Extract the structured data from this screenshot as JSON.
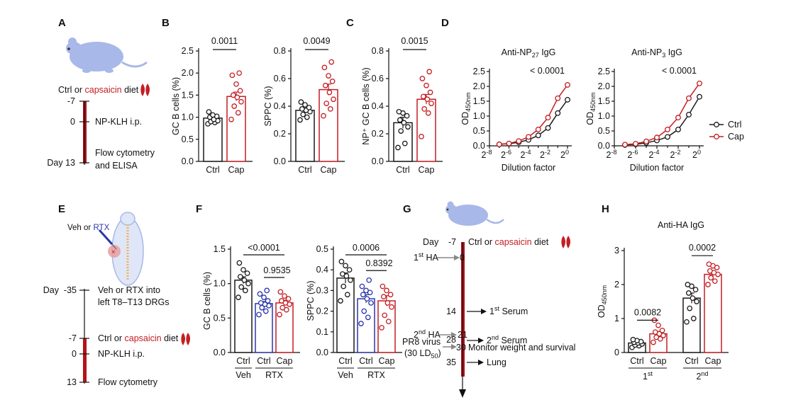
{
  "panels": {
    "A": "A",
    "B": "B",
    "C": "C",
    "D": "D",
    "E": "E",
    "F": "F",
    "G": "G",
    "H": "H"
  },
  "colors": {
    "ctrl": "#1a1a1a",
    "cap": "#c41e23",
    "rtx": "#2b36a8",
    "mouse": "#a8b8e8",
    "timeline_bar": "#b3131b"
  },
  "icons": {
    "mouse": "mouse-icon",
    "pepper": "chili-pepper-icon",
    "syringe": "syringe-icon"
  },
  "panel_a": {
    "diet_prefix": "Ctrl or ",
    "diet_highlight": "capsaicin",
    "diet_suffix": " diet",
    "days": [
      "-7",
      "0",
      "Day 13"
    ],
    "events": [
      "NP-KLH i.p.",
      "Flow cytometry",
      "and ELISA"
    ]
  },
  "panel_e": {
    "inject_prefix": "Veh or ",
    "inject_highlight": "RTX",
    "days": [
      "Day  -35",
      "-7",
      "0",
      "13"
    ],
    "events": [
      "Veh or RTX into",
      "left T8–T13 DRGs",
      "NP-KLH i.p.",
      "Flow cytometry"
    ],
    "diet_prefix": "Ctrl or ",
    "diet_highlight": "capsaicin",
    "diet_suffix": " diet"
  },
  "panel_g": {
    "events_left": [
      "1",
      "st",
      " HA",
      "2",
      "nd",
      " HA",
      "PR8 virus",
      "(30 LD",
      "50",
      ")"
    ],
    "days": [
      "Day",
      "-7",
      "0",
      "14",
      "21",
      "28",
      "30",
      "35"
    ],
    "events_right": [
      "1",
      "st",
      " Serum",
      "2",
      "nd",
      " Serum",
      "Monitor weight and survival",
      "Lung"
    ],
    "diet_prefix": "Ctrl or ",
    "diet_highlight": "capsaicin",
    "diet_suffix": " diet"
  },
  "chart_data": [
    {
      "id": "B1",
      "type": "bar",
      "categories": [
        "Ctrl",
        "Cap"
      ],
      "values": [
        0.98,
        1.47
      ],
      "errors": [
        0.05,
        0.1
      ],
      "points": [
        [
          0.85,
          0.88,
          0.9,
          0.92,
          0.95,
          1.0,
          1.02,
          1.05,
          1.12
        ],
        [
          0.95,
          1.1,
          1.25,
          1.35,
          1.45,
          1.5,
          1.6,
          1.75,
          1.95,
          2.0
        ]
      ],
      "ylabel": "GC B cells (%)",
      "ylim": [
        0,
        2.5
      ],
      "yticks": [
        "0.0",
        "0.5",
        "1.0",
        "1.5",
        "2.0",
        "2.5"
      ],
      "pvalue": "0.0011"
    },
    {
      "id": "B2",
      "type": "bar",
      "categories": [
        "Ctrl",
        "Cap"
      ],
      "values": [
        0.37,
        0.52
      ],
      "errors": [
        0.015,
        0.04
      ],
      "points": [
        [
          0.3,
          0.32,
          0.34,
          0.36,
          0.37,
          0.38,
          0.39,
          0.41,
          0.43
        ],
        [
          0.33,
          0.38,
          0.42,
          0.45,
          0.5,
          0.55,
          0.58,
          0.62,
          0.68,
          0.72
        ]
      ],
      "ylabel": "SPPC (%)",
      "ylim": [
        0,
        0.8
      ],
      "yticks": [
        "0.0",
        "0.2",
        "0.4",
        "0.6",
        "0.8"
      ],
      "pvalue": "0.0049"
    },
    {
      "id": "C",
      "type": "bar",
      "categories": [
        "Ctrl",
        "Cap"
      ],
      "values": [
        0.28,
        0.45
      ],
      "errors": [
        0.04,
        0.035
      ],
      "points": [
        [
          0.1,
          0.13,
          0.22,
          0.25,
          0.28,
          0.3,
          0.33,
          0.35,
          0.36
        ],
        [
          0.18,
          0.35,
          0.38,
          0.42,
          0.45,
          0.47,
          0.5,
          0.55,
          0.6,
          0.65
        ]
      ],
      "ylabel": "NP⁺ GC B cells (%)",
      "ylim": [
        0,
        0.8
      ],
      "yticks": [
        "0.0",
        "0.2",
        "0.4",
        "0.6",
        "0.8"
      ],
      "pvalue": "0.0015"
    },
    {
      "id": "D1",
      "type": "line",
      "title_prefix": "Anti-NP",
      "title_sub": "27",
      "title_suffix": " IgG",
      "x_exp": [
        -7,
        -6,
        -5,
        -4,
        -3,
        -2,
        -1,
        0
      ],
      "xticks_exp": [
        "-8",
        "-6",
        "-4",
        "-2",
        "0"
      ],
      "series": [
        {
          "name": "Ctrl",
          "values": [
            0.05,
            0.07,
            0.12,
            0.2,
            0.35,
            0.6,
            1.1,
            1.55
          ]
        },
        {
          "name": "Cap",
          "values": [
            0.05,
            0.08,
            0.16,
            0.3,
            0.55,
            0.95,
            1.6,
            2.05
          ]
        }
      ],
      "ylabel": "OD",
      "ylabel_sub": "450nm",
      "xlabel": "Dilution factor",
      "ylim": [
        0,
        2.5
      ],
      "yticks": [
        "0.0",
        "0.5",
        "1.0",
        "1.5",
        "2.0",
        "2.5"
      ],
      "pvalue": "< 0.0001"
    },
    {
      "id": "D2",
      "type": "line",
      "title_prefix": "Anti-NP",
      "title_sub": "3",
      "title_suffix": " IgG",
      "x_exp": [
        -7,
        -6,
        -5,
        -4,
        -3,
        -2,
        -1,
        0
      ],
      "xticks_exp": [
        "-8",
        "-6",
        "-4",
        "-2",
        "0"
      ],
      "series": [
        {
          "name": "Ctrl",
          "values": [
            0.03,
            0.05,
            0.1,
            0.18,
            0.3,
            0.55,
            1.05,
            1.65
          ]
        },
        {
          "name": "Cap",
          "values": [
            0.04,
            0.07,
            0.15,
            0.28,
            0.55,
            0.95,
            1.6,
            2.1
          ]
        }
      ],
      "ylabel": "OD",
      "ylabel_sub": "450nm",
      "xlabel": "Dilution factor",
      "ylim": [
        0,
        2.5
      ],
      "yticks": [
        "0.0",
        "0.5",
        "1.0",
        "1.5",
        "2.0",
        "2.5"
      ],
      "pvalue": "< 0.0001",
      "legend": [
        "Ctrl",
        "Cap"
      ]
    },
    {
      "id": "F1",
      "type": "bar",
      "categories": [
        "Ctrl",
        "Ctrl",
        "Cap"
      ],
      "groups": [
        "Veh",
        "RTX"
      ],
      "values": [
        1.05,
        0.71,
        0.72
      ],
      "errors": [
        0.05,
        0.03,
        0.04
      ],
      "points": [
        [
          0.8,
          0.9,
          0.95,
          1.0,
          1.05,
          1.1,
          1.15,
          1.2,
          1.3
        ],
        [
          0.55,
          0.6,
          0.65,
          0.68,
          0.7,
          0.72,
          0.75,
          0.8,
          0.85,
          0.9
        ],
        [
          0.55,
          0.62,
          0.65,
          0.7,
          0.72,
          0.75,
          0.78,
          0.82,
          0.88
        ]
      ],
      "ylabel": "GC B cells (%)",
      "ylim": [
        0,
        1.5
      ],
      "yticks": [
        "0.0",
        "0.5",
        "1.0",
        "1.5"
      ],
      "pvalues": [
        "<0.0001",
        "0.9535"
      ]
    },
    {
      "id": "F2",
      "type": "bar",
      "categories": [
        "Ctrl",
        "Ctrl",
        "Cap"
      ],
      "groups": [
        "Veh",
        "RTX"
      ],
      "values": [
        0.36,
        0.26,
        0.25
      ],
      "errors": [
        0.025,
        0.02,
        0.025
      ],
      "points": [
        [
          0.25,
          0.28,
          0.32,
          0.35,
          0.37,
          0.38,
          0.4,
          0.42,
          0.44
        ],
        [
          0.14,
          0.17,
          0.2,
          0.24,
          0.26,
          0.28,
          0.29,
          0.3,
          0.32,
          0.35
        ],
        [
          0.12,
          0.15,
          0.18,
          0.22,
          0.24,
          0.27,
          0.28,
          0.3,
          0.32
        ]
      ],
      "ylabel": "SPPC (%)",
      "ylim": [
        0,
        0.5
      ],
      "yticks": [
        "0.0",
        "0.1",
        "0.2",
        "0.3",
        "0.4",
        "0.5"
      ],
      "pvalues": [
        "0.0006",
        "0.8392"
      ]
    },
    {
      "id": "H",
      "type": "bar",
      "title": "Anti-HA IgG",
      "categories": [
        "Ctrl",
        "Cap",
        "Ctrl",
        "Cap"
      ],
      "groups_base": [
        "1",
        "2"
      ],
      "groups_sup": [
        "st",
        "nd"
      ],
      "values": [
        0.28,
        0.55,
        1.6,
        2.3
      ],
      "errors": [
        0.03,
        0.07,
        0.15,
        0.08
      ],
      "points": [
        [
          0.15,
          0.2,
          0.22,
          0.25,
          0.28,
          0.3,
          0.32,
          0.35,
          0.38
        ],
        [
          0.3,
          0.4,
          0.45,
          0.5,
          0.55,
          0.6,
          0.65,
          0.8,
          0.95
        ],
        [
          0.9,
          1.0,
          1.3,
          1.5,
          1.6,
          1.75,
          1.85,
          1.95,
          2.0
        ],
        [
          2.0,
          2.1,
          2.2,
          2.3,
          2.35,
          2.4,
          2.5,
          2.55,
          2.6
        ]
      ],
      "ylabel": "OD",
      "ylabel_sub": "450nm",
      "ylim": [
        0,
        3
      ],
      "yticks": [
        "0",
        "1",
        "2",
        "3"
      ],
      "pvalues": [
        "0.0082",
        "0.0002"
      ]
    }
  ]
}
